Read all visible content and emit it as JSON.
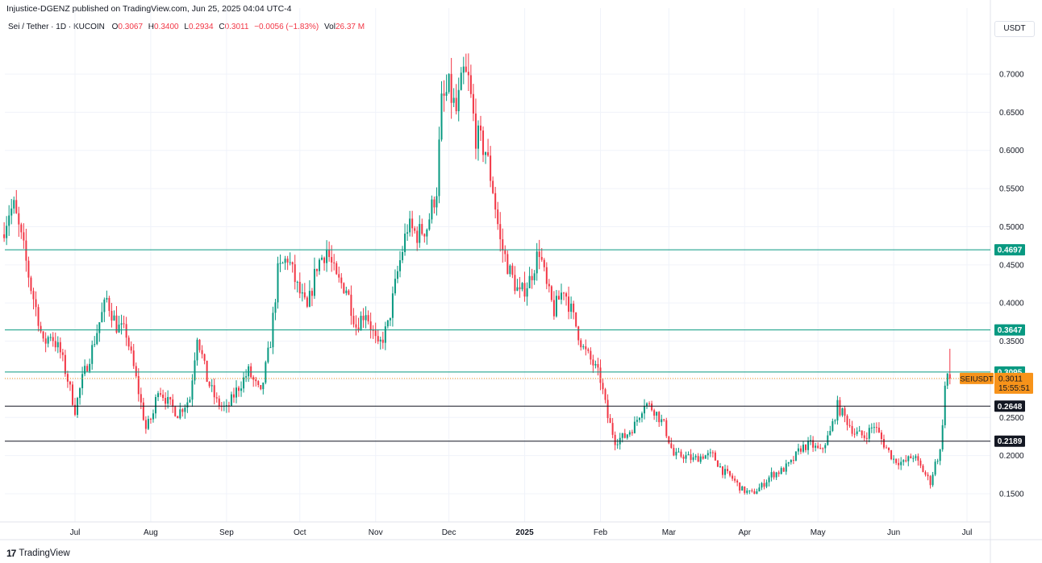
{
  "header": {
    "publisher": "Injustice-DGENZ published on TradingView.com, Jun 25, 2025 04:04 UTC-4",
    "symbol": "Sei / Tether · 1D · KUCOIN",
    "open_label": "O",
    "open_value": "0.3067",
    "high_label": "H",
    "high_value": "0.3400",
    "low_label": "L",
    "low_value": "0.2934",
    "close_label": "C",
    "close_value": "0.3011",
    "change_value": "−0.0056 (−1.83%)",
    "vol_label": "Vol",
    "vol_value": "26.37 M",
    "currency": "USDT"
  },
  "footer": {
    "brand": "TradingView",
    "logo": "17"
  },
  "colors": {
    "up": "#089981",
    "down": "#f23645",
    "grid": "#f0f3fa",
    "level_teal": "#089981",
    "level_black": "#131722",
    "last_price": "#f7931a"
  },
  "chart_data": {
    "type": "candlestick",
    "title": "",
    "xlabel": "",
    "ylabel": "",
    "ylim": [
      0.125,
      0.76
    ],
    "y_ticks": [
      0.15,
      0.2,
      0.25,
      0.3,
      0.35,
      0.4,
      0.45,
      0.5,
      0.55,
      0.6,
      0.65,
      0.7
    ],
    "y_tick_labels": [
      "0.1500",
      "0.2000",
      "0.2500",
      "0.3000",
      "0.3500",
      "0.4000",
      "0.4500",
      "0.5000",
      "0.5500",
      "0.6000",
      "0.6500",
      "0.7000"
    ],
    "x_labels": [
      {
        "label": "Jul",
        "day": 0
      },
      {
        "label": "Aug",
        "day": 31
      },
      {
        "label": "Sep",
        "day": 62
      },
      {
        "label": "Oct",
        "day": 92
      },
      {
        "label": "Nov",
        "day": 123
      },
      {
        "label": "Dec",
        "day": 153
      },
      {
        "label": "2025",
        "day": 184
      },
      {
        "label": "Feb",
        "day": 215
      },
      {
        "label": "Mar",
        "day": 243
      },
      {
        "label": "Apr",
        "day": 274
      },
      {
        "label": "May",
        "day": 304
      },
      {
        "label": "Jun",
        "day": 335
      },
      {
        "label": "Jul",
        "day": 365
      }
    ],
    "x_range_days": [
      -29,
      367
    ],
    "price_path": [
      [
        -29,
        0.49
      ],
      [
        -26,
        0.52
      ],
      [
        -24,
        0.525
      ],
      [
        -20,
        0.47
      ],
      [
        -17,
        0.42
      ],
      [
        -14,
        0.38
      ],
      [
        -12,
        0.345
      ],
      [
        -9,
        0.36
      ],
      [
        -5,
        0.335
      ],
      [
        -2,
        0.3
      ],
      [
        1,
        0.26
      ],
      [
        4,
        0.3
      ],
      [
        8,
        0.34
      ],
      [
        11,
        0.375
      ],
      [
        14,
        0.405
      ],
      [
        18,
        0.37
      ],
      [
        22,
        0.36
      ],
      [
        26,
        0.3
      ],
      [
        30,
        0.235
      ],
      [
        33,
        0.255
      ],
      [
        35,
        0.29
      ],
      [
        39,
        0.27
      ],
      [
        43,
        0.255
      ],
      [
        48,
        0.275
      ],
      [
        51,
        0.36
      ],
      [
        55,
        0.3
      ],
      [
        59,
        0.27
      ],
      [
        63,
        0.26
      ],
      [
        67,
        0.285
      ],
      [
        72,
        0.31
      ],
      [
        77,
        0.28
      ],
      [
        81,
        0.35
      ],
      [
        84,
        0.44
      ],
      [
        88,
        0.46
      ],
      [
        92,
        0.42
      ],
      [
        96,
        0.39
      ],
      [
        100,
        0.45
      ],
      [
        104,
        0.47
      ],
      [
        108,
        0.43
      ],
      [
        112,
        0.42
      ],
      [
        116,
        0.37
      ],
      [
        120,
        0.39
      ],
      [
        125,
        0.34
      ],
      [
        129,
        0.37
      ],
      [
        133,
        0.44
      ],
      [
        137,
        0.5
      ],
      [
        141,
        0.49
      ],
      [
        145,
        0.5
      ],
      [
        149,
        0.55
      ],
      [
        151,
        0.66
      ],
      [
        154,
        0.68
      ],
      [
        157,
        0.65
      ],
      [
        160,
        0.7
      ],
      [
        162,
        0.69
      ],
      [
        165,
        0.62
      ],
      [
        169,
        0.6
      ],
      [
        172,
        0.55
      ],
      [
        175,
        0.48
      ],
      [
        179,
        0.44
      ],
      [
        183,
        0.41
      ],
      [
        187,
        0.43
      ],
      [
        191,
        0.47
      ],
      [
        194,
        0.42
      ],
      [
        197,
        0.39
      ],
      [
        201,
        0.42
      ],
      [
        205,
        0.38
      ],
      [
        209,
        0.34
      ],
      [
        213,
        0.32
      ],
      [
        216,
        0.3
      ],
      [
        219,
        0.25
      ],
      [
        222,
        0.22
      ],
      [
        226,
        0.225
      ],
      [
        230,
        0.24
      ],
      [
        234,
        0.27
      ],
      [
        238,
        0.26
      ],
      [
        242,
        0.24
      ],
      [
        246,
        0.2
      ],
      [
        250,
        0.2
      ],
      [
        254,
        0.195
      ],
      [
        258,
        0.2
      ],
      [
        262,
        0.2
      ],
      [
        266,
        0.18
      ],
      [
        270,
        0.17
      ],
      [
        274,
        0.155
      ],
      [
        278,
        0.15
      ],
      [
        282,
        0.16
      ],
      [
        286,
        0.175
      ],
      [
        290,
        0.18
      ],
      [
        294,
        0.19
      ],
      [
        298,
        0.21
      ],
      [
        302,
        0.215
      ],
      [
        306,
        0.205
      ],
      [
        310,
        0.23
      ],
      [
        313,
        0.265
      ],
      [
        316,
        0.25
      ],
      [
        320,
        0.23
      ],
      [
        324,
        0.225
      ],
      [
        328,
        0.24
      ],
      [
        332,
        0.215
      ],
      [
        336,
        0.195
      ],
      [
        340,
        0.19
      ],
      [
        344,
        0.2
      ],
      [
        348,
        0.18
      ],
      [
        351,
        0.165
      ],
      [
        353,
        0.19
      ],
      [
        355,
        0.205
      ],
      [
        356,
        0.245
      ],
      [
        357,
        0.29
      ],
      [
        358,
        0.3067
      ]
    ],
    "last_candle": {
      "day": 358,
      "open": 0.3067,
      "high": 0.34,
      "low": 0.2934,
      "close": 0.3011
    },
    "horizontal_levels": [
      {
        "value": 0.4697,
        "label": "0.4697",
        "style": "teal"
      },
      {
        "value": 0.3647,
        "label": "0.3647",
        "style": "teal"
      },
      {
        "value": 0.3095,
        "label": "0.3095",
        "style": "teal"
      },
      {
        "value": 0.2648,
        "label": "0.2648",
        "style": "black"
      },
      {
        "value": 0.2189,
        "label": "0.2189",
        "style": "black"
      }
    ],
    "last_price": {
      "symbol": "SEIUSDT",
      "value": 0.3011,
      "label": "0.3011",
      "countdown": "15:55:51"
    }
  }
}
